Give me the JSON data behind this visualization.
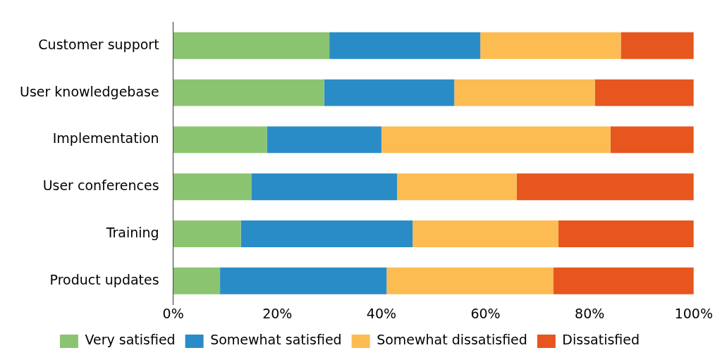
{
  "chart_data": {
    "type": "bar",
    "orientation": "horizontal",
    "stacked": true,
    "categories": [
      "Customer support",
      "User knowledgebase",
      "Implementation",
      "User conferences",
      "Training",
      "Product updates"
    ],
    "series": [
      {
        "name": "Very satisfied",
        "color": "#8bc470",
        "values": [
          30,
          29,
          18,
          15,
          13,
          9
        ]
      },
      {
        "name": "Somewhat satisfied",
        "color": "#2a8cc7",
        "values": [
          29,
          25,
          22,
          28,
          33,
          32
        ]
      },
      {
        "name": "Somewhat dissatisfied",
        "color": "#fcbc52",
        "values": [
          27,
          27,
          44,
          23,
          28,
          32
        ]
      },
      {
        "name": "Dissatisfied",
        "color": "#e6561e",
        "values": [
          14,
          19,
          16,
          34,
          26,
          27
        ]
      }
    ],
    "xlim": [
      0,
      100
    ],
    "xticks": [
      {
        "value": 0,
        "label": "0%"
      },
      {
        "value": 20,
        "label": "20%"
      },
      {
        "value": 40,
        "label": "40%"
      },
      {
        "value": 60,
        "label": "60%"
      },
      {
        "value": 80,
        "label": "80%"
      },
      {
        "value": 100,
        "label": "100%"
      }
    ],
    "grid": false,
    "legend": "bottom"
  }
}
